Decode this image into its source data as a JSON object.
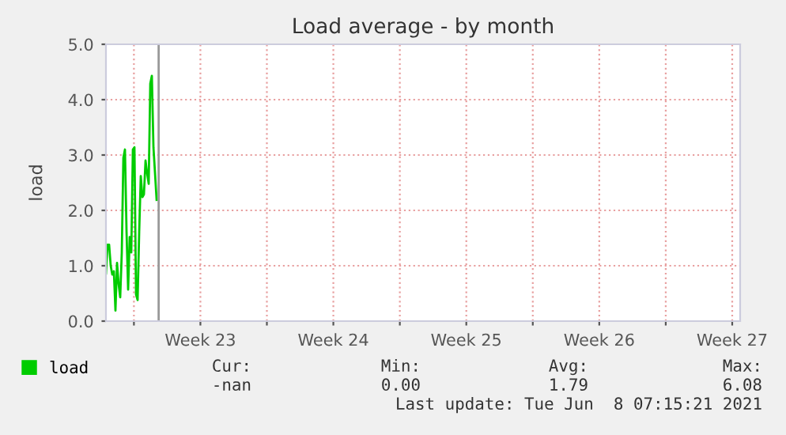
{
  "chart_data": {
    "type": "line",
    "title": "Load average - by month",
    "ylabel": "load",
    "x": [
      "2021-06-05T12:40",
      "2021-06-05T14:40",
      "2021-06-05T16:40",
      "2021-06-05T18:40",
      "2021-06-05T20:40",
      "2021-06-05T22:40",
      "2021-06-06T00:40",
      "2021-06-06T02:40",
      "2021-06-06T04:40",
      "2021-06-06T06:40",
      "2021-06-06T08:40",
      "2021-06-06T10:40",
      "2021-06-06T12:40",
      "2021-06-06T14:40",
      "2021-06-06T16:40",
      "2021-06-06T18:40",
      "2021-06-06T20:40",
      "2021-06-06T22:40",
      "2021-06-07T00:40",
      "2021-06-07T02:40",
      "2021-06-07T04:40",
      "2021-06-07T06:40",
      "2021-06-07T08:40",
      "2021-06-07T10:40",
      "2021-06-07T12:40",
      "2021-06-07T14:40",
      "2021-06-07T16:40",
      "2021-06-07T18:40",
      "2021-06-07T20:40",
      "2021-06-07T22:40",
      "2021-06-08T00:40",
      "2021-06-08T02:40",
      "2021-06-08T04:40"
    ],
    "series": [
      {
        "name": "load",
        "color": "#00cc00",
        "values": [
          0.86,
          1.38,
          1.38,
          1.0,
          0.84,
          0.9,
          0.19,
          1.05,
          0.67,
          0.43,
          1.24,
          2.95,
          3.1,
          1.62,
          0.57,
          1.52,
          1.24,
          3.1,
          3.14,
          0.48,
          0.38,
          1.62,
          2.62,
          2.24,
          2.29,
          2.9,
          2.67,
          2.48,
          4.29,
          4.43,
          3.14,
          2.67,
          2.19
        ]
      }
    ],
    "xlim": [
      "2021-06-05T12:40",
      "2021-07-08T22:00"
    ],
    "xticks": [
      {
        "value": "2021-06-07",
        "label": null
      },
      {
        "value": "2021-06-10T12:00",
        "label": "Week 23"
      },
      {
        "value": "2021-06-14",
        "label": null
      },
      {
        "value": "2021-06-17T12:00",
        "label": "Week 24"
      },
      {
        "value": "2021-06-21",
        "label": null
      },
      {
        "value": "2021-06-24T12:00",
        "label": "Week 25"
      },
      {
        "value": "2021-06-28",
        "label": null
      },
      {
        "value": "2021-07-01T12:00",
        "label": "Week 26"
      },
      {
        "value": "2021-07-05",
        "label": null
      },
      {
        "value": "2021-07-08T12:00",
        "label": "Week 27"
      }
    ],
    "ylim": [
      0,
      5
    ],
    "yticks": [
      {
        "value": 0,
        "label": "0.0"
      },
      {
        "value": 1,
        "label": "1.0"
      },
      {
        "value": 2,
        "label": "2.0"
      },
      {
        "value": 3,
        "label": "3.0"
      },
      {
        "value": 4,
        "label": "4.0"
      },
      {
        "value": 5,
        "label": "5.0"
      }
    ],
    "grid": true,
    "legend": "bottom left",
    "ref_lines": [
      {
        "axis": "x",
        "value": "2021-06-08T07:15",
        "color": "#999999"
      }
    ],
    "annotations": [
      "Cur:",
      "Min:",
      "Avg:",
      "Max:",
      "-nan",
      "0.00",
      "1.79",
      "6.08",
      "Last update: Tue Jun  8 07:15:21 2021"
    ]
  }
}
